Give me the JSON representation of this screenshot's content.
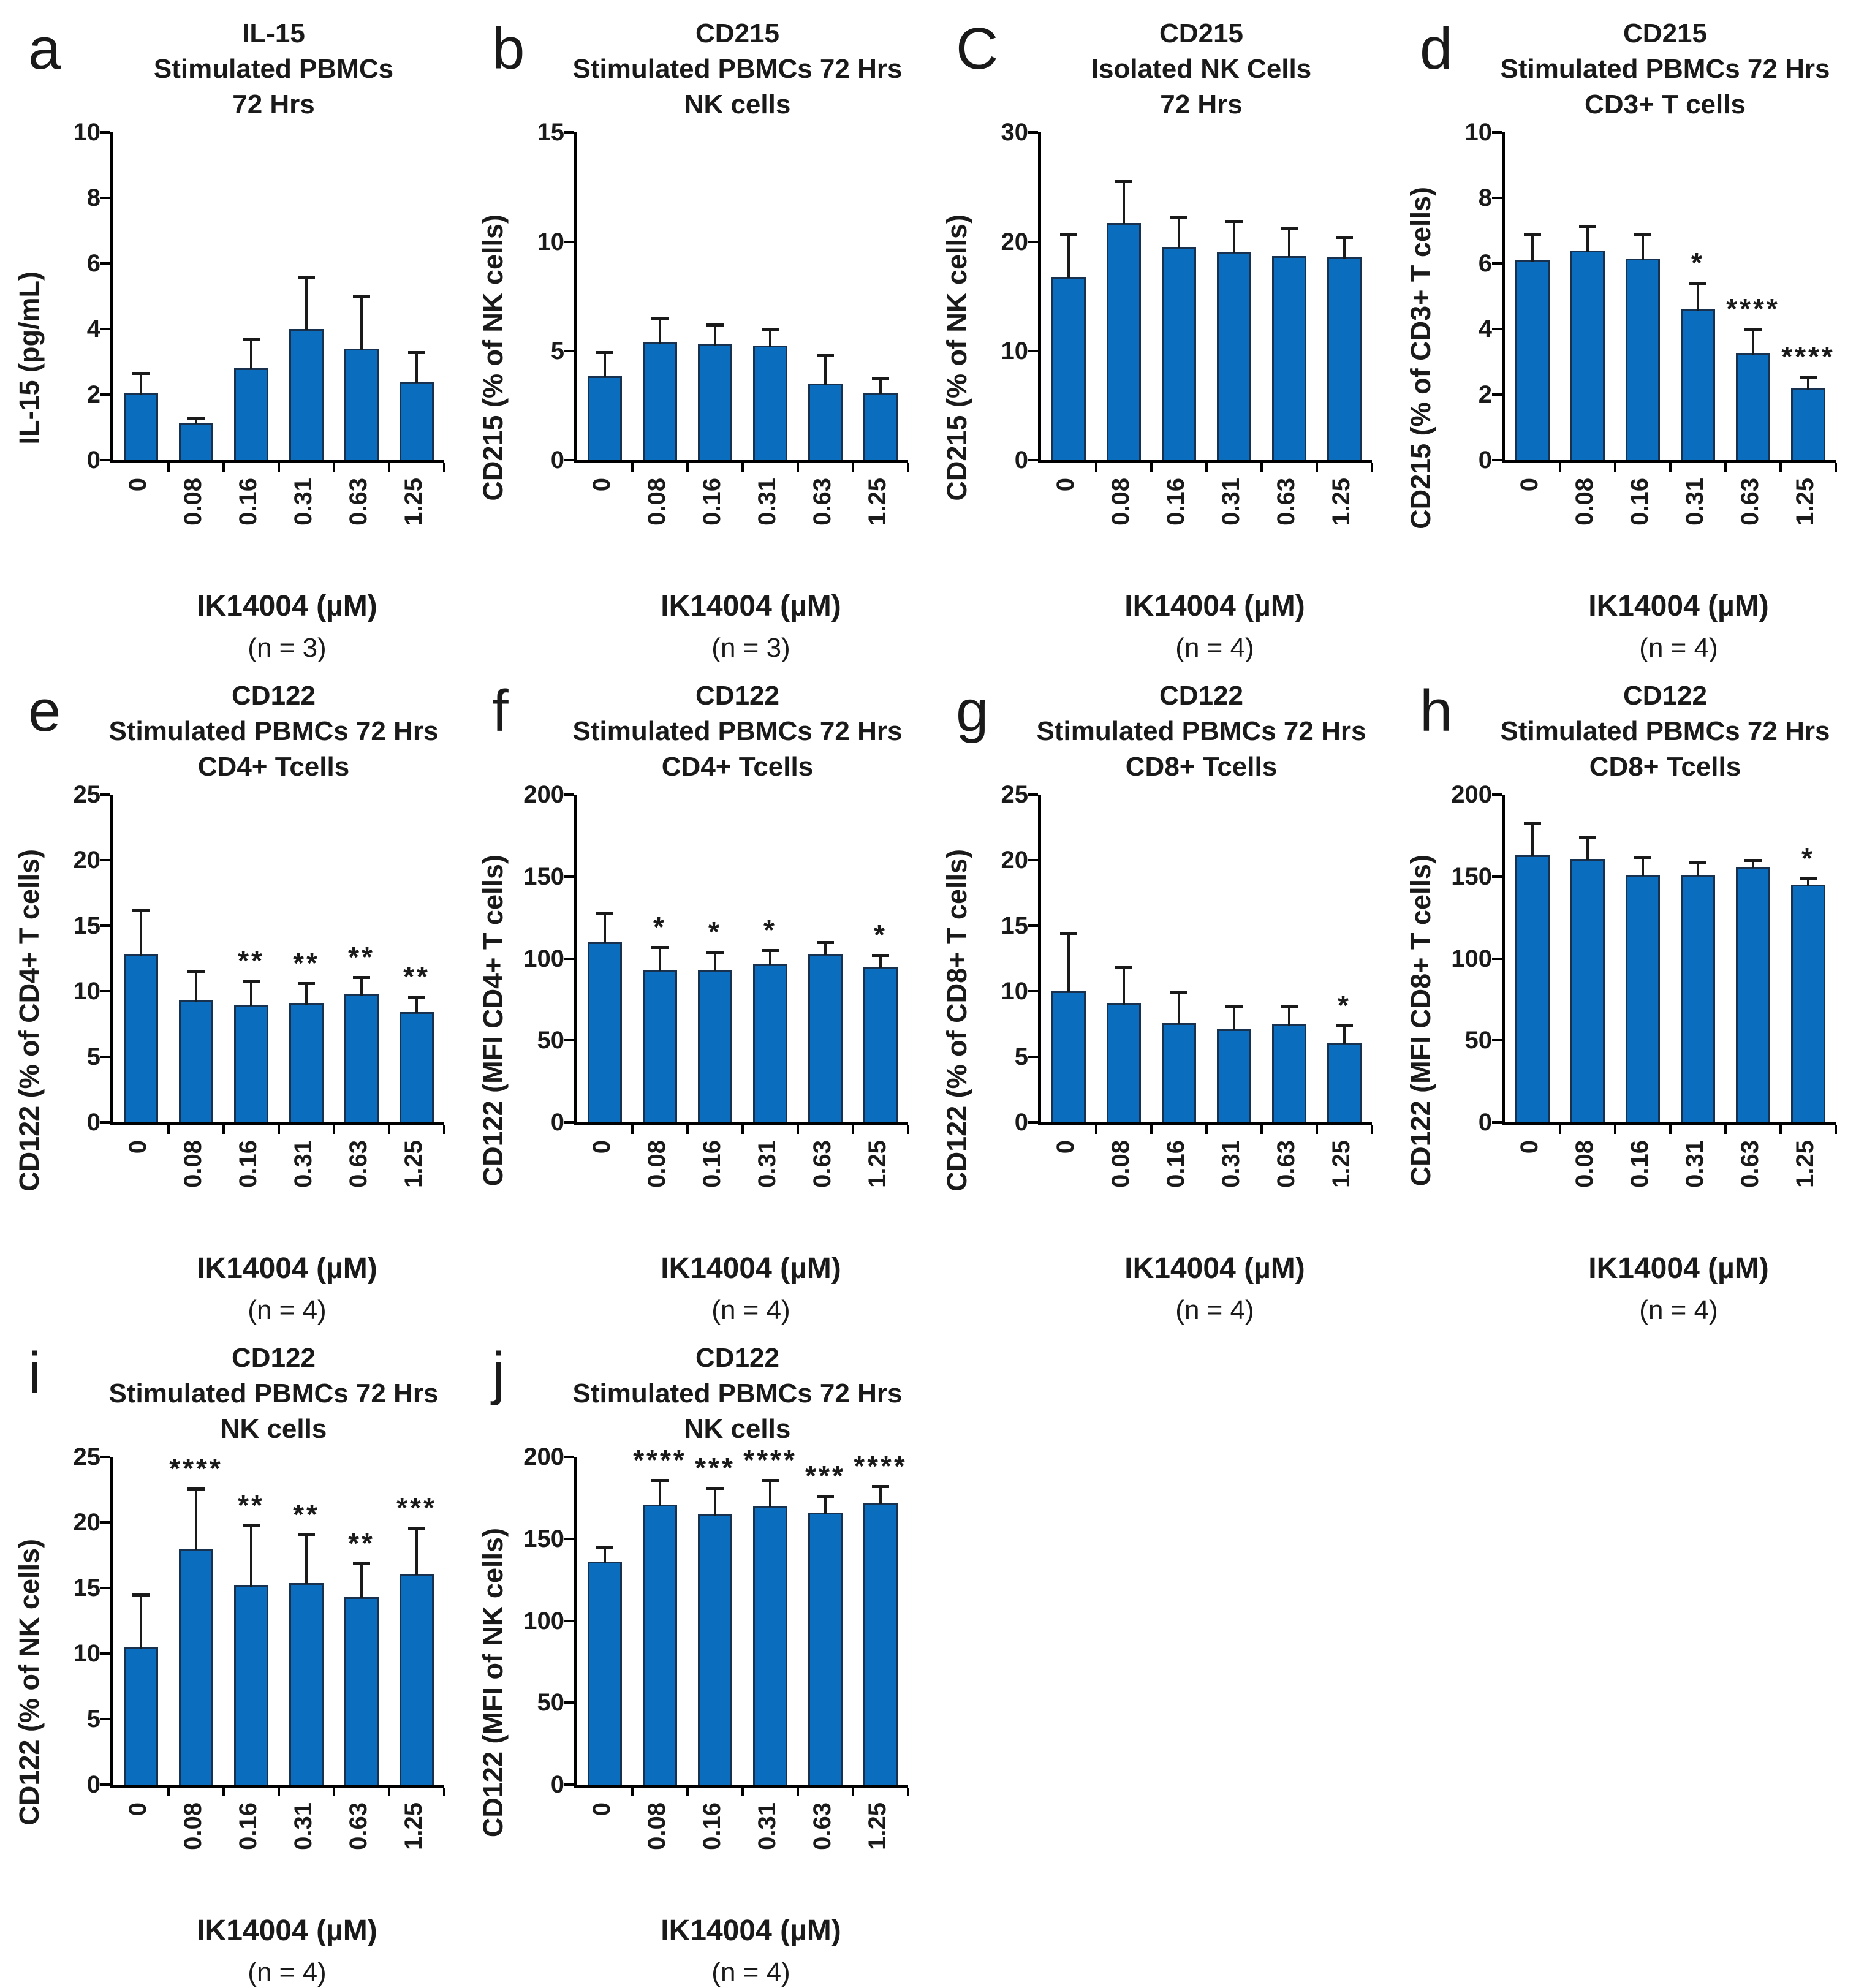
{
  "figure": {
    "background": "#ffffff",
    "bar_fill": "#0b6dbd",
    "bar_border": "#17314f",
    "axis_color": "#000000",
    "x_categories": [
      "0",
      "0.08",
      "0.16",
      "0.31",
      "0.63",
      "1.25"
    ],
    "x_axis_title": "IK14004 (µM)"
  },
  "chart_data": [
    {
      "type": "bar",
      "panel": "a",
      "letter": "a",
      "title_lines": [
        "IL-15",
        "Stimulated PBMCs",
        "72 Hrs"
      ],
      "ylabel": "IL-15 (pg/mL)",
      "ylim": [
        0,
        10
      ],
      "yticks": [
        0,
        2,
        4,
        6,
        8,
        10
      ],
      "categories": [
        "0",
        "0.08",
        "0.16",
        "0.31",
        "0.63",
        "1.25"
      ],
      "values": [
        2.05,
        1.15,
        2.8,
        4.0,
        3.4,
        2.4
      ],
      "errors": [
        0.6,
        0.15,
        0.9,
        1.6,
        1.6,
        0.9
      ],
      "sig": [
        "",
        "",
        "",
        "",
        "",
        ""
      ],
      "xlabel": "IK14004 (µM)",
      "n_label": "(n = 3)",
      "grid": false,
      "legend": "none"
    },
    {
      "type": "bar",
      "panel": "b",
      "letter": "b",
      "title_lines": [
        "CD215",
        "Stimulated PBMCs 72 Hrs",
        "NK cells"
      ],
      "ylabel": "CD215  (% of NK cells)",
      "ylim": [
        0,
        15
      ],
      "yticks": [
        0,
        5,
        10,
        15
      ],
      "categories": [
        "0",
        "0.08",
        "0.16",
        "0.31",
        "0.63",
        "1.25"
      ],
      "values": [
        3.85,
        5.4,
        5.3,
        5.25,
        3.5,
        3.1
      ],
      "errors": [
        1.1,
        1.1,
        0.9,
        0.75,
        1.3,
        0.65
      ],
      "sig": [
        "",
        "",
        "",
        "",
        "",
        ""
      ],
      "xlabel": "IK14004 (µM)",
      "n_label": "(n = 3)",
      "grid": false,
      "legend": "none"
    },
    {
      "type": "bar",
      "panel": "c",
      "letter": "C",
      "title_lines": [
        "CD215",
        "Isolated NK Cells",
        "72 Hrs"
      ],
      "ylabel": "CD215  (% of NK cells)",
      "ylim": [
        0,
        30
      ],
      "yticks": [
        0,
        10,
        20,
        30
      ],
      "categories": [
        "0",
        "0.08",
        "0.16",
        "0.31",
        "0.63",
        "1.25"
      ],
      "values": [
        16.8,
        21.7,
        19.5,
        19.1,
        18.7,
        18.6
      ],
      "errors": [
        3.9,
        3.9,
        2.7,
        2.8,
        2.5,
        1.8
      ],
      "sig": [
        "",
        "",
        "",
        "",
        "",
        ""
      ],
      "xlabel": "IK14004 (µM)",
      "n_label": "(n = 4)",
      "grid": false,
      "legend": "none"
    },
    {
      "type": "bar",
      "panel": "d",
      "letter": "d",
      "title_lines": [
        "CD215",
        "Stimulated PBMCs 72 Hrs",
        "CD3+ T cells"
      ],
      "ylabel": "CD215  (% of CD3+ T cells)",
      "ylim": [
        0,
        10
      ],
      "yticks": [
        0,
        2,
        4,
        6,
        8,
        10
      ],
      "categories": [
        "0",
        "0.08",
        "0.16",
        "0.31",
        "0.63",
        "1.25"
      ],
      "values": [
        6.1,
        6.4,
        6.15,
        4.6,
        3.25,
        2.2
      ],
      "errors": [
        0.8,
        0.75,
        0.75,
        0.8,
        0.75,
        0.35
      ],
      "sig": [
        "",
        "",
        "",
        "*",
        "****",
        "****"
      ],
      "xlabel": "IK14004 (µM)",
      "n_label": "(n = 4)",
      "grid": false,
      "legend": "none"
    },
    {
      "type": "bar",
      "panel": "e",
      "letter": "e",
      "title_lines": [
        "CD122",
        "Stimulated PBMCs 72 Hrs",
        "CD4+ Tcells"
      ],
      "ylabel": "CD122  (% of CD4+ T  cells)",
      "ylim": [
        0,
        25
      ],
      "yticks": [
        0,
        5,
        10,
        15,
        20,
        25
      ],
      "categories": [
        "0",
        "0.08",
        "0.16",
        "0.31",
        "0.63",
        "1.25"
      ],
      "values": [
        12.8,
        9.3,
        9.0,
        9.1,
        9.8,
        8.4
      ],
      "errors": [
        3.4,
        2.2,
        1.8,
        1.5,
        1.3,
        1.2
      ],
      "sig": [
        "",
        "",
        "**",
        "**",
        "**",
        "**"
      ],
      "xlabel": "IK14004 (µM)",
      "n_label": "(n = 4)",
      "grid": false,
      "legend": "none"
    },
    {
      "type": "bar",
      "panel": "f",
      "letter": "f",
      "title_lines": [
        "CD122",
        "Stimulated PBMCs 72 Hrs",
        "CD4+ Tcells"
      ],
      "ylabel": "CD122  (MFI CD4+ T  cells)",
      "ylim": [
        0,
        200
      ],
      "yticks": [
        0,
        50,
        100,
        150,
        200
      ],
      "categories": [
        "0",
        "0.08",
        "0.16",
        "0.31",
        "0.63",
        "1.25"
      ],
      "values": [
        110,
        93,
        93,
        97,
        103,
        95
      ],
      "errors": [
        18,
        14,
        11,
        8,
        7,
        7
      ],
      "sig": [
        "",
        "*",
        "*",
        "*",
        "",
        "*"
      ],
      "xlabel": "IK14004 (µM)",
      "n_label": "(n = 4)",
      "grid": false,
      "legend": "none"
    },
    {
      "type": "bar",
      "panel": "g",
      "letter": "g",
      "title_lines": [
        "CD122",
        "Stimulated PBMCs 72 Hrs",
        "CD8+ Tcells"
      ],
      "ylabel": "CD122  (% of CD8+ T  cells)",
      "ylim": [
        0,
        25
      ],
      "yticks": [
        0,
        5,
        10,
        15,
        20,
        25
      ],
      "categories": [
        "0",
        "0.08",
        "0.16",
        "0.31",
        "0.63",
        "1.25"
      ],
      "values": [
        10.0,
        9.1,
        7.6,
        7.1,
        7.5,
        6.1
      ],
      "errors": [
        4.4,
        2.8,
        2.3,
        1.8,
        1.4,
        1.3
      ],
      "sig": [
        "",
        "",
        "",
        "",
        "",
        "*"
      ],
      "xlabel": "IK14004 (µM)",
      "n_label": "(n = 4)",
      "grid": false,
      "legend": "none"
    },
    {
      "type": "bar",
      "panel": "h",
      "letter": "h",
      "title_lines": [
        "CD122",
        "Stimulated PBMCs 72 Hrs",
        "CD8+ Tcells"
      ],
      "ylabel": "CD122  (MFI CD8+ T  cells)",
      "ylim": [
        0,
        200
      ],
      "yticks": [
        0,
        50,
        100,
        150,
        200
      ],
      "categories": [
        "0",
        "0.08",
        "0.16",
        "0.31",
        "0.63",
        "1.25"
      ],
      "values": [
        163,
        161,
        151,
        151,
        156,
        145
      ],
      "errors": [
        20,
        13,
        11,
        8,
        4,
        4
      ],
      "sig": [
        "",
        "",
        "",
        "",
        "",
        "*"
      ],
      "xlabel": "IK14004 (µM)",
      "n_label": "(n = 4)",
      "grid": false,
      "legend": "none"
    },
    {
      "type": "bar",
      "panel": "i",
      "letter": "i",
      "title_lines": [
        "CD122",
        "Stimulated PBMCs 72 Hrs",
        "NK cells"
      ],
      "ylabel": "CD122  (% of NK cells)",
      "ylim": [
        0,
        25
      ],
      "yticks": [
        0,
        5,
        10,
        15,
        20,
        25
      ],
      "categories": [
        "0",
        "0.08",
        "0.16",
        "0.31",
        "0.63",
        "1.25"
      ],
      "values": [
        10.5,
        18.0,
        15.2,
        15.4,
        14.3,
        16.1
      ],
      "errors": [
        4.0,
        4.6,
        4.6,
        3.7,
        2.6,
        3.5
      ],
      "sig": [
        "",
        "****",
        "**",
        "**",
        "**",
        "***"
      ],
      "xlabel": "IK14004 (µM)",
      "n_label": "(n = 4)",
      "grid": false,
      "legend": "none"
    },
    {
      "type": "bar",
      "panel": "j",
      "letter": "j",
      "title_lines": [
        "CD122",
        "Stimulated PBMCs 72 Hrs",
        "NK cells"
      ],
      "ylabel": "CD122  (MFI of NK cells)",
      "ylim": [
        0,
        200
      ],
      "yticks": [
        0,
        50,
        100,
        150,
        200
      ],
      "categories": [
        "0",
        "0.08",
        "0.16",
        "0.31",
        "0.63",
        "1.25"
      ],
      "values": [
        136,
        171,
        165,
        170,
        166,
        172
      ],
      "errors": [
        9,
        15,
        16,
        16,
        10,
        10
      ],
      "sig": [
        "",
        "****",
        "***",
        "****",
        "***",
        "****"
      ],
      "xlabel": "IK14004 (µM)",
      "n_label": "(n = 4)",
      "grid": false,
      "legend": "none"
    }
  ]
}
